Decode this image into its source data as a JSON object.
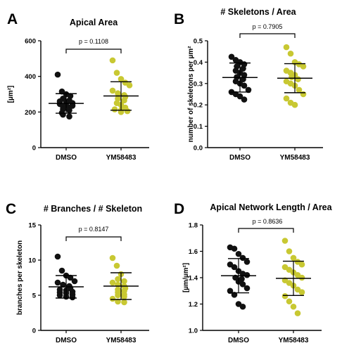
{
  "colors": {
    "dmso": "#111111",
    "ym": "#c8c832",
    "axis": "#000000"
  },
  "chart_data": [
    {
      "type": "scatter",
      "panel_label": "A",
      "title": "Apical Area",
      "ylabel": "[µm²]",
      "ylim": [
        0,
        600
      ],
      "yticks": [
        0,
        200,
        400,
        600
      ],
      "categories": [
        "DMSO",
        "YM58483"
      ],
      "pvalue": "p = 0.1108",
      "series": [
        {
          "name": "DMSO",
          "mean": 248,
          "sd": 55,
          "values": [
            410,
            315,
            300,
            290,
            275,
            265,
            260,
            255,
            250,
            245,
            240,
            235,
            230,
            225,
            215,
            210,
            195,
            185,
            175
          ]
        },
        {
          "name": "YM58483",
          "mean": 290,
          "sd": 80,
          "values": [
            490,
            420,
            385,
            365,
            350,
            320,
            305,
            295,
            285,
            275,
            265,
            250,
            240,
            225,
            215,
            210,
            205,
            200
          ]
        }
      ]
    },
    {
      "type": "scatter",
      "panel_label": "B",
      "title": "# Skeletons / Area",
      "ylabel": "number of skeletons per µm²",
      "ylim": [
        0,
        0.5
      ],
      "yticks": [
        0.0,
        0.1,
        0.2,
        0.3,
        0.4,
        0.5
      ],
      "categories": [
        "DMSO",
        "YM58483"
      ],
      "pvalue": "p = 0.7905",
      "series": [
        {
          "name": "DMSO",
          "mean": 0.328,
          "sd": 0.068,
          "values": [
            0.425,
            0.41,
            0.4,
            0.39,
            0.38,
            0.37,
            0.36,
            0.35,
            0.34,
            0.33,
            0.32,
            0.31,
            0.3,
            0.29,
            0.27,
            0.26,
            0.25,
            0.24,
            0.225
          ]
        },
        {
          "name": "YM58483",
          "mean": 0.325,
          "sd": 0.068,
          "values": [
            0.47,
            0.44,
            0.4,
            0.39,
            0.38,
            0.36,
            0.35,
            0.34,
            0.33,
            0.32,
            0.31,
            0.3,
            0.29,
            0.27,
            0.25,
            0.23,
            0.21,
            0.2
          ]
        }
      ]
    },
    {
      "type": "scatter",
      "panel_label": "C",
      "title": "# Branches / # Skeleton",
      "ylabel": "branches per skeleton",
      "ylim": [
        0,
        15
      ],
      "yticks": [
        0,
        5,
        10,
        15
      ],
      "categories": [
        "DMSO",
        "YM58483"
      ],
      "pvalue": "p = 0.8147",
      "series": [
        {
          "name": "DMSO",
          "mean": 6.2,
          "sd": 1.6,
          "values": [
            10.5,
            8.5,
            7.8,
            7.5,
            7.0,
            6.8,
            6.5,
            6.3,
            6.0,
            5.8,
            5.7,
            5.5,
            5.4,
            5.3,
            5.1,
            5.0,
            4.8,
            4.7
          ]
        },
        {
          "name": "YM58483",
          "mean": 6.3,
          "sd": 1.9,
          "values": [
            10.3,
            9.2,
            8.0,
            7.3,
            7.0,
            6.8,
            6.5,
            6.3,
            6.0,
            5.8,
            5.6,
            5.4,
            5.1,
            5.0,
            4.8,
            4.5,
            4.1,
            4.0
          ]
        }
      ]
    },
    {
      "type": "scatter",
      "panel_label": "D",
      "title": "Apical Network Length / Area",
      "ylabel": "[µm/µm²]",
      "ylim": [
        1.0,
        1.8
      ],
      "yticks": [
        1.0,
        1.2,
        1.4,
        1.6,
        1.8
      ],
      "categories": [
        "DMSO",
        "YM58483"
      ],
      "pvalue": "p = 0.8636",
      "series": [
        {
          "name": "DMSO",
          "mean": 1.415,
          "sd": 0.13,
          "values": [
            1.63,
            1.62,
            1.58,
            1.55,
            1.52,
            1.5,
            1.48,
            1.45,
            1.43,
            1.42,
            1.4,
            1.39,
            1.37,
            1.35,
            1.32,
            1.3,
            1.27,
            1.2,
            1.18
          ]
        },
        {
          "name": "YM58483",
          "mean": 1.395,
          "sd": 0.13,
          "values": [
            1.68,
            1.6,
            1.55,
            1.52,
            1.5,
            1.48,
            1.46,
            1.44,
            1.42,
            1.4,
            1.38,
            1.36,
            1.34,
            1.31,
            1.29,
            1.26,
            1.22,
            1.18,
            1.13
          ]
        }
      ]
    }
  ]
}
